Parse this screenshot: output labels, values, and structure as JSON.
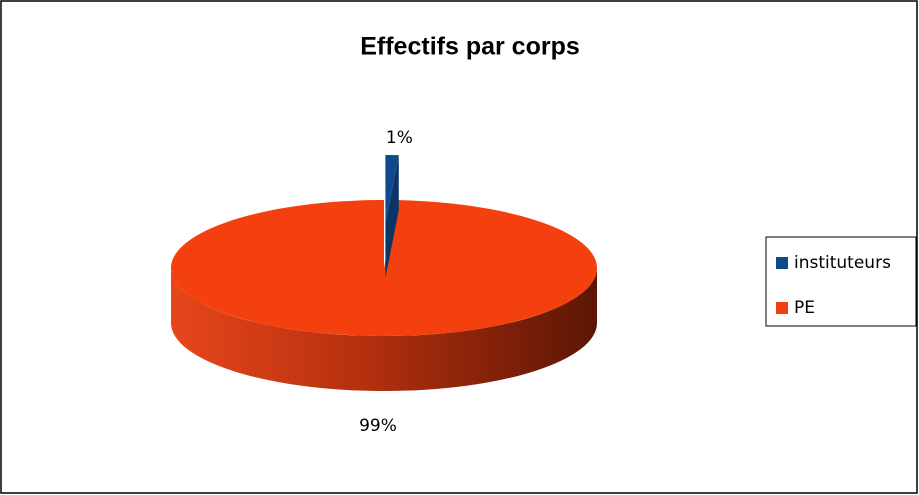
{
  "chart_data": {
    "type": "pie",
    "title": "Effectifs par corps",
    "categories": [
      "instituteurs",
      "PE"
    ],
    "values": [
      1,
      99
    ],
    "value_labels": [
      "1%",
      "99%"
    ],
    "colors": [
      "#0f4a8a",
      "#f4400f"
    ],
    "legend": "right",
    "explode": [
      true,
      false
    ]
  }
}
